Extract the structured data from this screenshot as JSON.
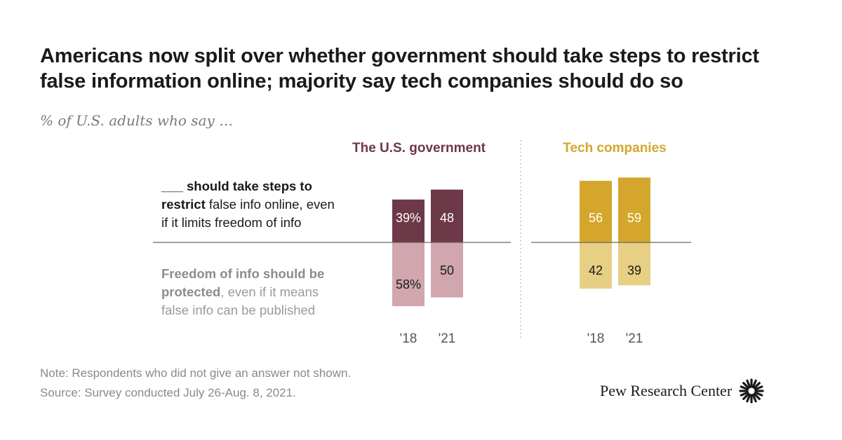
{
  "title_lines": [
    "Americans now split over whether government should take steps to restrict",
    "false information online; majority say tech companies should do so"
  ],
  "subtitle": "% of U.S. adults who say …",
  "labels": {
    "restrict_blank": "___",
    "restrict_bold": " should take steps to",
    "restrict_bold2": "restrict",
    "restrict_rest": " false info online, even",
    "restrict_line3": "if it limits freedom of info",
    "protect_bold1": "Freedom of info should be",
    "protect_bold2": "protected",
    "protect_rest": ", even if it means",
    "protect_line3": "false info can be published"
  },
  "notes": {
    "note": "Note: Respondents who did not give an answer not shown.",
    "source": "Source: Survey conducted July 26-Aug. 8, 2021."
  },
  "logo_text": "Pew Research Center",
  "colors": {
    "gov_dark": "#6d3847",
    "gov_light": "#d1a6ae",
    "tech_dark": "#d4a72c",
    "tech_light": "#e7cf83",
    "axis": "#666666"
  },
  "chart_data": {
    "type": "bar",
    "title": "Americans now split over whether government should take steps to restrict false information online; majority say tech companies should do so",
    "ylabel": "% of U.S. adults who say …",
    "categories": [
      "'18",
      "'21"
    ],
    "groups": [
      {
        "name": "The U.S. government",
        "restrict": [
          39,
          48
        ],
        "protect": [
          58,
          50
        ],
        "restrict_labels": [
          "39%",
          "48"
        ],
        "protect_labels": [
          "58%",
          "50"
        ]
      },
      {
        "name": "Tech companies",
        "restrict": [
          56,
          59
        ],
        "protect": [
          42,
          39
        ],
        "restrict_labels": [
          "56",
          "59"
        ],
        "protect_labels": [
          "42",
          "39"
        ]
      }
    ]
  }
}
